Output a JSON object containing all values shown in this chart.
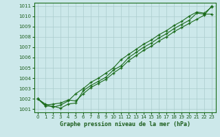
{
  "title": "Graphe pression niveau de la mer (hPa)",
  "background_color": "#cce8ea",
  "grid_color": "#aacccc",
  "line_color": "#1a6b1a",
  "marker_color": "#1a6b1a",
  "label_color": "#1a5c1a",
  "ylabel_ticks": [
    1001,
    1002,
    1003,
    1004,
    1005,
    1006,
    1007,
    1008,
    1009,
    1010,
    1011
  ],
  "xlim": [
    -0.5,
    23.5
  ],
  "ylim": [
    1000.7,
    1011.3
  ],
  "x_ticks": [
    0,
    1,
    2,
    3,
    4,
    5,
    6,
    7,
    8,
    9,
    10,
    11,
    12,
    13,
    14,
    15,
    16,
    17,
    18,
    19,
    20,
    21,
    22,
    23
  ],
  "series": [
    [
      1002.0,
      1001.3,
      1001.3,
      1001.1,
      1001.5,
      1001.6,
      1002.8,
      1003.3,
      1003.7,
      1004.1,
      1004.8,
      1005.2,
      1006.0,
      1006.5,
      1007.0,
      1007.4,
      1007.9,
      1008.3,
      1008.8,
      1009.2,
      1009.6,
      1010.3,
      1010.2,
      1010.2
    ],
    [
      1002.0,
      1001.5,
      1001.2,
      1001.4,
      1001.8,
      1002.5,
      1003.0,
      1003.6,
      1004.0,
      1004.5,
      1005.0,
      1005.8,
      1006.3,
      1006.8,
      1007.3,
      1007.7,
      1008.2,
      1008.6,
      1009.1,
      1009.5,
      1010.0,
      1010.4,
      1010.3,
      1010.9
    ],
    [
      1002.0,
      1001.4,
      1001.5,
      1001.6,
      1001.9,
      1001.8,
      1002.5,
      1003.1,
      1003.5,
      1003.9,
      1004.5,
      1005.0,
      1005.7,
      1006.2,
      1006.7,
      1007.1,
      1007.6,
      1008.0,
      1008.5,
      1008.9,
      1009.3,
      1009.7,
      1010.1,
      1011.0
    ]
  ]
}
